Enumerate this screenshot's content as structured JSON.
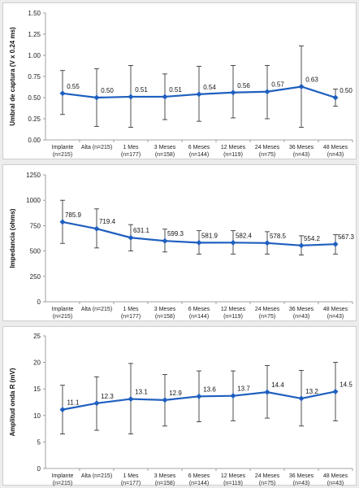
{
  "style": {
    "line_color": "#1f5fbf",
    "marker_color": "#1f5fbf",
    "error_bar_color": "#222222",
    "panel_bg": "#ffffff",
    "page_bg": "#ececec"
  },
  "chart_data": [
    {
      "type": "line",
      "ylabel": "Umbral de captura (V x 0.24 ms)",
      "ylim": [
        0,
        1.5
      ],
      "yticks": [
        "0.00",
        "0.25",
        "0.50",
        "0.75",
        "1.00",
        "1.25",
        "1.50"
      ],
      "grid": false,
      "categories": [
        [
          "Implante",
          "(n=215)"
        ],
        [
          "Alta (n=215)",
          ""
        ],
        [
          "1 Mes",
          "(n=177)"
        ],
        [
          "3 Meses",
          "(n=158)"
        ],
        [
          "6 Meses",
          "(n=144)"
        ],
        [
          "12 Meses",
          "(n=119)"
        ],
        [
          "24 Meses",
          "(n=75)"
        ],
        [
          "36 Meses",
          "(n=43)"
        ],
        [
          "48 Meses",
          "(n=43)"
        ]
      ],
      "values": [
        0.55,
        0.5,
        0.51,
        0.51,
        0.54,
        0.56,
        0.57,
        0.63,
        0.5
      ],
      "labels": [
        "0.55",
        "0.50",
        "0.51",
        "0.51",
        "0.54",
        "0.56",
        "0.57",
        "0.63",
        "0.50"
      ],
      "error_low": [
        0.3,
        0.16,
        0.15,
        0.24,
        0.22,
        0.26,
        0.25,
        0.15,
        0.4
      ],
      "error_high": [
        0.82,
        0.84,
        0.88,
        0.78,
        0.87,
        0.88,
        0.88,
        1.11,
        0.6
      ]
    },
    {
      "type": "line",
      "ylabel": "Impedancia  (ohms)",
      "ylim": [
        0,
        1250
      ],
      "yticks": [
        "0",
        "250",
        "500",
        "750",
        "1000",
        "1250"
      ],
      "grid": false,
      "categories": [
        [
          "Implante",
          "(n=215)"
        ],
        [
          "Alta (n=215)",
          ""
        ],
        [
          "1 Mes",
          "(n=177)"
        ],
        [
          "3 Meses",
          "(n=158)"
        ],
        [
          "6 Meses",
          "(n=144)"
        ],
        [
          "12 Meses",
          "(n=119)"
        ],
        [
          "24 Meses",
          "(n=75)"
        ],
        [
          "36 Meses",
          "(n=43)"
        ],
        [
          "48 Meses",
          "(n=43)"
        ]
      ],
      "values": [
        785.9,
        719.4,
        631.1,
        599.3,
        581.9,
        582.4,
        578.5,
        554.2,
        567.3
      ],
      "labels": [
        "785.9",
        "719.4",
        "631.1",
        "599.3",
        "581.9",
        "582.4",
        "578.5",
        "554.2",
        "567.3"
      ],
      "error_low": [
        575,
        530,
        500,
        490,
        470,
        470,
        470,
        460,
        470
      ],
      "error_high": [
        1000,
        915,
        760,
        715,
        700,
        700,
        690,
        650,
        660
      ]
    },
    {
      "type": "line",
      "ylabel": "Amplitud onda R (mV)",
      "ylim": [
        0,
        25
      ],
      "yticks": [
        "0",
        "5",
        "10",
        "15",
        "20",
        "25"
      ],
      "grid": false,
      "categories": [
        [
          "Implante",
          "(n=215)"
        ],
        [
          "Alta (n=215)",
          ""
        ],
        [
          "1 Mes",
          "(n=177)"
        ],
        [
          "3 Meses",
          "(n=158)"
        ],
        [
          "6 Meses",
          "(n=144)"
        ],
        [
          "12 Meses",
          "(n=119)"
        ],
        [
          "24 Meses",
          "(n=75)"
        ],
        [
          "36 Meses",
          "(n=43)"
        ],
        [
          "48 Meses",
          "(n=43)"
        ]
      ],
      "values": [
        11.1,
        12.3,
        13.1,
        12.9,
        13.6,
        13.7,
        14.4,
        13.2,
        14.5
      ],
      "labels": [
        "11.1",
        "12.3",
        "13.1",
        "12.9",
        "13.6",
        "13.7",
        "14.4",
        "13.2",
        "14.5"
      ],
      "error_low": [
        6.5,
        7.2,
        6.5,
        8.0,
        8.8,
        9.0,
        9.5,
        8.0,
        9.0
      ],
      "error_high": [
        15.7,
        17.3,
        19.8,
        17.7,
        18.4,
        18.4,
        19.4,
        18.5,
        20.0
      ]
    }
  ]
}
